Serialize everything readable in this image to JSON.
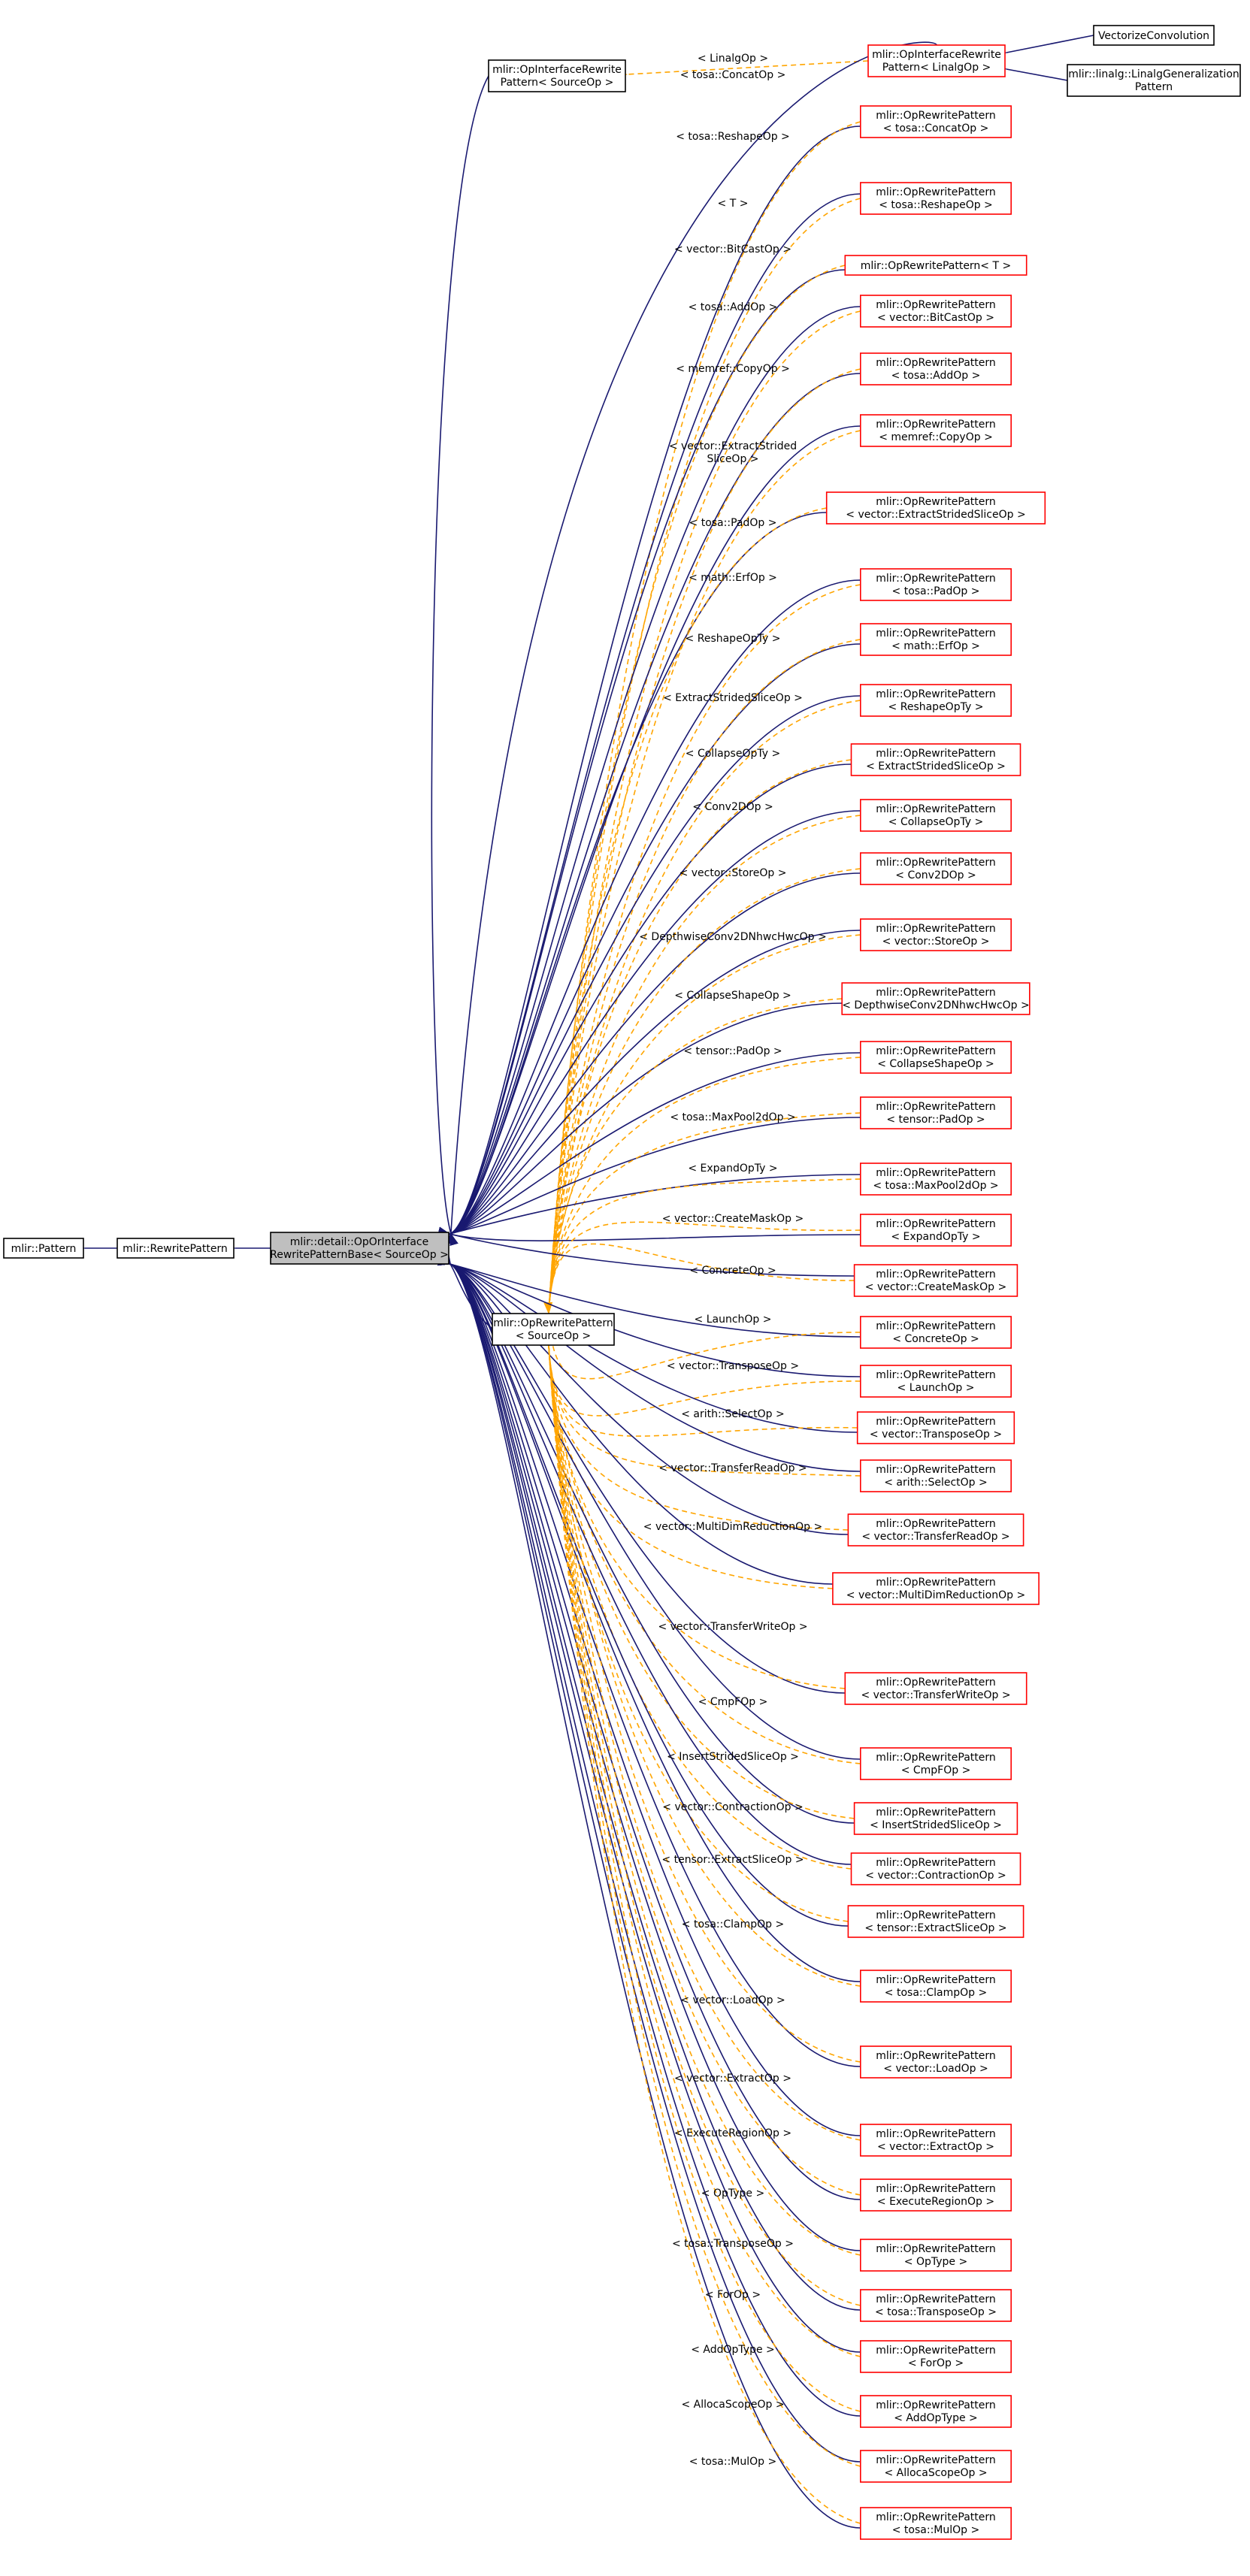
{
  "colors": {
    "solid_edge": "#191970",
    "dashed_edge": "#ffa500",
    "derived_border": "#ff0000",
    "documented_border": "#000000",
    "focus_fill": "#bfbfbf"
  },
  "nodes": {
    "pattern": "mlir::Pattern",
    "rewrite_pattern": "mlir::RewritePattern",
    "focus": [
      "mlir::detail::OpOrInterface",
      "RewritePatternBase< SourceOp >"
    ],
    "op_interface_base": [
      "mlir::OpInterfaceRewrite",
      "Pattern< SourceOp >"
    ],
    "op_rewrite_base": [
      "mlir::OpRewritePattern",
      "< SourceOp >"
    ],
    "linalg_interface": [
      "mlir::OpInterfaceRewrite",
      "Pattern< LinalgOp >"
    ],
    "vectorize_convolution": "VectorizeConvolution",
    "linalg_generalization": [
      "mlir::linalg::LinalgGeneralization",
      "Pattern"
    ]
  },
  "linalg_edge_label": "< LinalgOp >",
  "specializations": [
    {
      "node": [
        "mlir::OpRewritePattern",
        "< tosa::ConcatOp >"
      ],
      "label": [
        "< tosa::ConcatOp >"
      ]
    },
    {
      "node": [
        "mlir::OpRewritePattern",
        "< tosa::ReshapeOp >"
      ],
      "label": [
        "< tosa::ReshapeOp >"
      ]
    },
    {
      "node": [
        "mlir::OpRewritePattern< T >"
      ],
      "label": [
        "< T >"
      ]
    },
    {
      "node": [
        "mlir::OpRewritePattern",
        "< vector::BitCastOp >"
      ],
      "label": [
        "< vector::BitCastOp >"
      ]
    },
    {
      "node": [
        "mlir::OpRewritePattern",
        "< tosa::AddOp >"
      ],
      "label": [
        "< tosa::AddOp >"
      ]
    },
    {
      "node": [
        "mlir::OpRewritePattern",
        "< memref::CopyOp >"
      ],
      "label": [
        "< memref::CopyOp >"
      ]
    },
    {
      "node": [
        "mlir::OpRewritePattern",
        "< vector::ExtractStridedSliceOp >"
      ],
      "label": [
        "< vector::ExtractStrided",
        "SliceOp >"
      ]
    },
    {
      "node": [
        "mlir::OpRewritePattern",
        "< tosa::PadOp >"
      ],
      "label": [
        "< tosa::PadOp >"
      ]
    },
    {
      "node": [
        "mlir::OpRewritePattern",
        "< math::ErfOp >"
      ],
      "label": [
        "< math::ErfOp >"
      ]
    },
    {
      "node": [
        "mlir::OpRewritePattern",
        "< ReshapeOpTy >"
      ],
      "label": [
        "< ReshapeOpTy >"
      ]
    },
    {
      "node": [
        "mlir::OpRewritePattern",
        "< ExtractStridedSliceOp >"
      ],
      "label": [
        "< ExtractStridedSliceOp >"
      ]
    },
    {
      "node": [
        "mlir::OpRewritePattern",
        "< CollapseOpTy >"
      ],
      "label": [
        "< CollapseOpTy >"
      ]
    },
    {
      "node": [
        "mlir::OpRewritePattern",
        "< Conv2DOp >"
      ],
      "label": [
        "< Conv2DOp >"
      ]
    },
    {
      "node": [
        "mlir::OpRewritePattern",
        "< vector::StoreOp >"
      ],
      "label": [
        "< vector::StoreOp >"
      ]
    },
    {
      "node": [
        "mlir::OpRewritePattern",
        "< DepthwiseConv2DNhwcHwcOp >"
      ],
      "label": [
        "< DepthwiseConv2DNhwcHwcOp >"
      ]
    },
    {
      "node": [
        "mlir::OpRewritePattern",
        "< CollapseShapeOp >"
      ],
      "label": [
        "< CollapseShapeOp >"
      ]
    },
    {
      "node": [
        "mlir::OpRewritePattern",
        "< tensor::PadOp >"
      ],
      "label": [
        "< tensor::PadOp >"
      ]
    },
    {
      "node": [
        "mlir::OpRewritePattern",
        "< tosa::MaxPool2dOp >"
      ],
      "label": [
        "< tosa::MaxPool2dOp >"
      ]
    },
    {
      "node": [
        "mlir::OpRewritePattern",
        "< ExpandOpTy >"
      ],
      "label": [
        "< ExpandOpTy >"
      ]
    },
    {
      "node": [
        "mlir::OpRewritePattern",
        "< vector::CreateMaskOp >"
      ],
      "label": [
        "< vector::CreateMaskOp >"
      ]
    },
    {
      "node": [
        "mlir::OpRewritePattern",
        "< ConcreteOp >"
      ],
      "label": [
        "< ConcreteOp >"
      ]
    },
    {
      "node": [
        "mlir::OpRewritePattern",
        "< LaunchOp >"
      ],
      "label": [
        "< LaunchOp >"
      ]
    },
    {
      "node": [
        "mlir::OpRewritePattern",
        "< vector::TransposeOp >"
      ],
      "label": [
        "< vector::TransposeOp >"
      ]
    },
    {
      "node": [
        "mlir::OpRewritePattern",
        "< arith::SelectOp >"
      ],
      "label": [
        "< arith::SelectOp >"
      ]
    },
    {
      "node": [
        "mlir::OpRewritePattern",
        "< vector::TransferReadOp >"
      ],
      "label": [
        "< vector::TransferReadOp >"
      ]
    },
    {
      "node": [
        "mlir::OpRewritePattern",
        "< vector::MultiDimReductionOp >"
      ],
      "label": [
        "< vector::MultiDimReductionOp >"
      ]
    },
    {
      "node": [
        "mlir::OpRewritePattern",
        "< vector::TransferWriteOp >"
      ],
      "label": [
        "< vector::TransferWriteOp >"
      ]
    },
    {
      "node": [
        "mlir::OpRewritePattern",
        "< CmpFOp >"
      ],
      "label": [
        "< CmpFOp >"
      ]
    },
    {
      "node": [
        "mlir::OpRewritePattern",
        "< InsertStridedSliceOp >"
      ],
      "label": [
        "< InsertStridedSliceOp >"
      ]
    },
    {
      "node": [
        "mlir::OpRewritePattern",
        "< vector::ContractionOp >"
      ],
      "label": [
        "< vector::ContractionOp >"
      ]
    },
    {
      "node": [
        "mlir::OpRewritePattern",
        "< tensor::ExtractSliceOp >"
      ],
      "label": [
        "< tensor::ExtractSliceOp >"
      ]
    },
    {
      "node": [
        "mlir::OpRewritePattern",
        "< tosa::ClampOp >"
      ],
      "label": [
        "< tosa::ClampOp >"
      ]
    },
    {
      "node": [
        "mlir::OpRewritePattern",
        "< vector::LoadOp >"
      ],
      "label": [
        "< vector::LoadOp >"
      ]
    },
    {
      "node": [
        "mlir::OpRewritePattern",
        "< vector::ExtractOp >"
      ],
      "label": [
        "< vector::ExtractOp >"
      ]
    },
    {
      "node": [
        "mlir::OpRewritePattern",
        "< ExecuteRegionOp >"
      ],
      "label": [
        "< ExecuteRegionOp >"
      ]
    },
    {
      "node": [
        "mlir::OpRewritePattern",
        "< OpType >"
      ],
      "label": [
        "< OpType >"
      ]
    },
    {
      "node": [
        "mlir::OpRewritePattern",
        "< tosa::TransposeOp >"
      ],
      "label": [
        "< tosa::TransposeOp >"
      ]
    },
    {
      "node": [
        "mlir::OpRewritePattern",
        "< ForOp >"
      ],
      "label": [
        "< ForOp >"
      ]
    },
    {
      "node": [
        "mlir::OpRewritePattern",
        "< AddOpType >"
      ],
      "label": [
        "< AddOpType >"
      ]
    },
    {
      "node": [
        "mlir::OpRewritePattern",
        "< AllocaScopeOp >"
      ],
      "label": [
        "< AllocaScopeOp >"
      ]
    },
    {
      "node": [
        "mlir::OpRewritePattern",
        "< tosa::MulOp >"
      ],
      "label": [
        "< tosa::MulOp >"
      ]
    }
  ]
}
